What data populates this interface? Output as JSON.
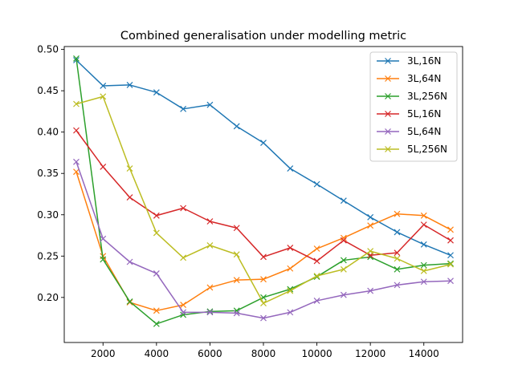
{
  "chart_data": {
    "type": "line",
    "title": "Combined generalisation under modelling metric",
    "xlabel": "",
    "ylabel": "",
    "xlim": [
      550,
      15450
    ],
    "ylim": [
      0.1455,
      0.5035
    ],
    "xticks": [
      2000,
      4000,
      6000,
      8000,
      10000,
      12000,
      14000
    ],
    "xtick_labels": [
      "2000",
      "4000",
      "6000",
      "8000",
      "10000",
      "12000",
      "14000"
    ],
    "yticks": [
      0.2,
      0.25,
      0.3,
      0.35,
      0.4,
      0.45,
      0.5
    ],
    "ytick_labels": [
      "0.20",
      "0.25",
      "0.30",
      "0.35",
      "0.40",
      "0.45",
      "0.50"
    ],
    "grid": false,
    "legend_position": "top-right",
    "marker": "x",
    "x": [
      1000,
      2000,
      3000,
      4000,
      5000,
      6000,
      7000,
      8000,
      9000,
      10000,
      11000,
      12000,
      13000,
      14000,
      15000
    ],
    "series": [
      {
        "name": "3L,16N",
        "color": "#1f77b4",
        "values": [
          0.487,
          0.456,
          0.457,
          0.448,
          0.428,
          0.433,
          0.407,
          0.387,
          0.356,
          0.337,
          0.317,
          0.297,
          0.279,
          0.264,
          0.251
        ]
      },
      {
        "name": "3L,64N",
        "color": "#ff7f0e",
        "values": [
          0.352,
          0.25,
          0.194,
          0.184,
          0.191,
          0.212,
          0.221,
          0.222,
          0.235,
          0.259,
          0.272,
          0.287,
          0.301,
          0.299,
          0.282
        ]
      },
      {
        "name": "3L,256N",
        "color": "#2ca02c",
        "values": [
          0.489,
          0.246,
          0.195,
          0.168,
          0.179,
          0.183,
          0.184,
          0.2,
          0.21,
          0.225,
          0.245,
          0.249,
          0.234,
          0.239,
          0.241
        ]
      },
      {
        "name": "5L,16N",
        "color": "#d62728",
        "values": [
          0.402,
          0.358,
          0.321,
          0.299,
          0.308,
          0.292,
          0.284,
          0.249,
          0.26,
          0.244,
          0.269,
          0.251,
          0.254,
          0.288,
          0.269
        ]
      },
      {
        "name": "5L,64N",
        "color": "#9467bd",
        "values": [
          0.364,
          0.271,
          0.243,
          0.229,
          0.182,
          0.182,
          0.181,
          0.175,
          0.182,
          0.196,
          0.203,
          0.208,
          0.215,
          0.219,
          0.22
        ]
      },
      {
        "name": "5L,256N",
        "color": "#bcbd22",
        "values": [
          0.434,
          0.443,
          0.356,
          0.278,
          0.248,
          0.263,
          0.252,
          0.193,
          0.208,
          0.226,
          0.234,
          0.256,
          0.247,
          0.232,
          0.24
        ]
      }
    ]
  }
}
